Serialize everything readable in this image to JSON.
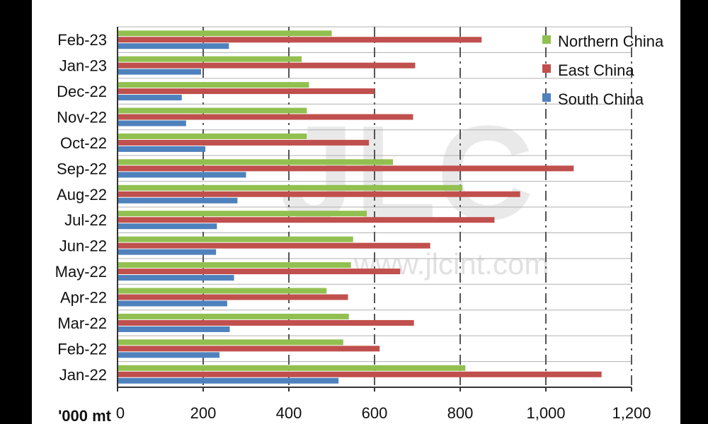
{
  "watermark": {
    "logo_text": "JLC",
    "url_text": "www.jlcint.com"
  },
  "chart_data": {
    "type": "bar",
    "orientation": "horizontal",
    "categories": [
      "Feb-23",
      "Jan-23",
      "Dec-22",
      "Nov-22",
      "Oct-22",
      "Sep-22",
      "Aug-22",
      "Jul-22",
      "Jun-22",
      "May-22",
      "Apr-22",
      "Mar-22",
      "Feb-22",
      "Jan-22"
    ],
    "series": [
      {
        "name": "Northern China",
        "color": "#92c050",
        "values": [
          500,
          430,
          447,
          442,
          442,
          643,
          805,
          582,
          550,
          545,
          488,
          540,
          527,
          812
        ]
      },
      {
        "name": "East China",
        "color": "#c0504d",
        "values": [
          850,
          695,
          600,
          690,
          587,
          1065,
          940,
          880,
          730,
          660,
          538,
          692,
          612,
          1130
        ]
      },
      {
        "name": "South China",
        "color": "#4f81bd",
        "values": [
          260,
          195,
          150,
          160,
          205,
          300,
          280,
          232,
          230,
          272,
          256,
          262,
          238,
          516
        ]
      }
    ],
    "x_ticks": [
      "0",
      "200",
      "400",
      "600",
      "800",
      "1,000",
      "1,200"
    ],
    "xlim": [
      0,
      1200
    ],
    "xlabel": "'000 mt",
    "legend_position": "top-right",
    "grid": "dash-dot vertical gridlines, horizontal category separators"
  }
}
